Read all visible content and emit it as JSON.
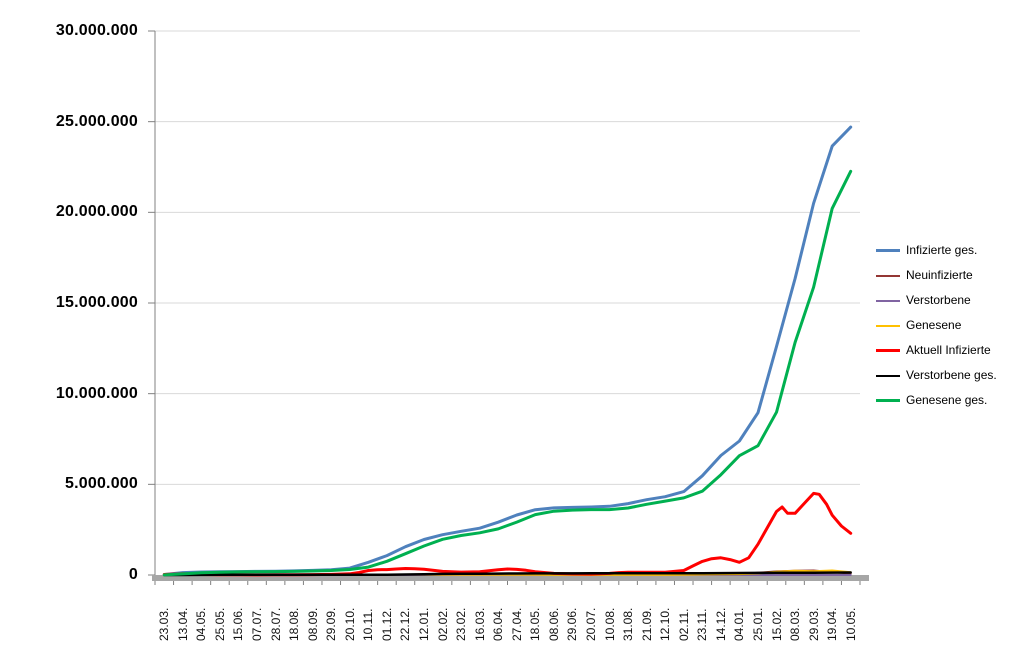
{
  "page": {
    "background": "#ffffff"
  },
  "chart_data": {
    "type": "line",
    "title": "",
    "xlabel": "",
    "ylabel": "",
    "grid": true,
    "legend_position": "right",
    "x_tick_labels": [
      "23.03.",
      "13.04.",
      "04.05.",
      "25.05.",
      "15.06.",
      "07.07.",
      "28.07.",
      "18.08.",
      "08.09.",
      "29.09.",
      "20.10.",
      "10.11.",
      "01.12.",
      "22.12.",
      "12.01.",
      "02.02.",
      "23.02.",
      "16.03.",
      "06.04.",
      "27.04.",
      "18.05.",
      "08.06.",
      "29.06.",
      "20.07.",
      "10.08.",
      "31.08.",
      "21.09.",
      "12.10.",
      "02.11.",
      "23.11.",
      "14.12.",
      "04.01.",
      "25.01.",
      "15.02.",
      "08.03.",
      "29.03.",
      "19.04.",
      "10.05."
    ],
    "y_axis": {
      "min": 0,
      "max": 30000000,
      "step": 5000000,
      "tick_labels": [
        "0",
        "5.000.000",
        "10.000.000",
        "15.000.000",
        "20.000.000",
        "25.000.000",
        "30.000.000"
      ]
    },
    "colors": {
      "gridline": "#d9d9d9",
      "axis": "#808080",
      "baseline_band": "#a6a6a6"
    },
    "series": [
      {
        "name": "Infizierte ges.",
        "color": "#4f81bd",
        "width": 3,
        "values": [
          30000,
          130000,
          163000,
          180000,
          188000,
          198000,
          208000,
          226000,
          252000,
          289000,
          380000,
          700000,
          1070000,
          1560000,
          1960000,
          2225000,
          2410000,
          2580000,
          2910000,
          3310000,
          3600000,
          3700000,
          3730000,
          3750000,
          3790000,
          3940000,
          4150000,
          4320000,
          4600000,
          5470000,
          6590000,
          7390000,
          8950000,
          12600000,
          16350000,
          20500000,
          23650000,
          24700000
        ]
      },
      {
        "name": "Neuinfizierte",
        "color": "#943634",
        "width": 2,
        "values": [
          3000,
          5000,
          2000,
          1000,
          600,
          500,
          700,
          1200,
          1500,
          2500,
          7000,
          20000,
          22000,
          27000,
          20000,
          12000,
          9000,
          10000,
          18000,
          20000,
          12000,
          5000,
          2000,
          1500,
          3500,
          8000,
          9000,
          8500,
          15000,
          50000,
          55000,
          45000,
          120000,
          200000,
          230000,
          250000,
          160000,
          80000
        ]
      },
      {
        "name": "Verstorbene",
        "color": "#8064a2",
        "width": 2,
        "values": [
          80,
          200,
          250,
          150,
          100,
          60,
          50,
          40,
          50,
          60,
          100,
          250,
          450,
          700,
          900,
          850,
          600,
          400,
          250,
          250,
          200,
          150,
          100,
          80,
          80,
          100,
          120,
          150,
          200,
          300,
          400,
          350,
          250,
          250,
          300,
          350,
          300,
          250
        ]
      },
      {
        "name": "Genesene",
        "color": "#ffc000",
        "width": 2,
        "values": [
          2000,
          8000,
          5000,
          3000,
          1500,
          1200,
          1300,
          1500,
          1800,
          2500,
          5000,
          15000,
          20000,
          25000,
          22000,
          18000,
          12000,
          10000,
          14000,
          17000,
          15000,
          8000,
          4000,
          2500,
          3500,
          6000,
          7000,
          6500,
          9000,
          25000,
          40000,
          50000,
          90000,
          180000,
          230000,
          210000,
          250000,
          150000
        ]
      },
      {
        "name": "Aktuell Infizierte",
        "color": "#ff0000",
        "width": 3,
        "x": [
          0,
          1,
          2,
          3,
          4,
          5,
          6,
          7,
          8,
          9,
          10,
          10.5,
          11,
          11.5,
          12,
          12.5,
          13,
          13.5,
          14,
          15,
          16,
          17,
          17.5,
          18,
          18.5,
          19,
          19.5,
          20,
          21,
          22,
          23,
          24,
          24.5,
          25,
          26,
          27,
          28,
          28.5,
          29,
          29.5,
          30,
          30.5,
          31,
          31.5,
          32,
          32.5,
          33,
          33.3,
          33.6,
          34,
          34.5,
          35,
          35.3,
          35.7,
          36,
          36.5,
          37
        ],
        "values": [
          25000,
          65000,
          30000,
          17000,
          9000,
          8000,
          10000,
          17000,
          21000,
          33000,
          66000,
          140000,
          250000,
          290000,
          300000,
          330000,
          360000,
          350000,
          320000,
          200000,
          160000,
          180000,
          230000,
          290000,
          330000,
          310000,
          260000,
          180000,
          90000,
          60000,
          50000,
          90000,
          130000,
          150000,
          155000,
          150000,
          250000,
          500000,
          750000,
          900000,
          950000,
          850000,
          700000,
          950000,
          1700000,
          2600000,
          3500000,
          3750000,
          3400000,
          3400000,
          3950000,
          4500000,
          4450000,
          3900000,
          3300000,
          2700000,
          2300000
        ]
      },
      {
        "name": "Verstorbene ges.",
        "color": "#000000",
        "width": 2.5,
        "values": [
          200,
          2500,
          6500,
          8400,
          8800,
          9000,
          9100,
          9200,
          9300,
          9500,
          9900,
          12000,
          17000,
          27000,
          43000,
          59000,
          69000,
          74000,
          78000,
          83000,
          86500,
          89000,
          90500,
          91500,
          92000,
          92500,
          93200,
          94500,
          96000,
          100000,
          106000,
          113000,
          117500,
          121000,
          125000,
          129000,
          133500,
          136500
        ]
      },
      {
        "name": "Genesene ges.",
        "color": "#00b050",
        "width": 3,
        "values": [
          5000,
          62000,
          126000,
          154000,
          170000,
          181000,
          189000,
          200000,
          222000,
          246000,
          304000,
          438000,
          753000,
          1173000,
          1597000,
          1966000,
          2181000,
          2326000,
          2542000,
          2917000,
          3333000,
          3521000,
          3579000,
          3608000,
          3608000,
          3697000,
          3901000,
          4075000,
          4254000,
          4620000,
          5534000,
          6577000,
          7132000,
          8979000,
          12825000,
          15871000,
          20216000,
          22263000
        ]
      }
    ]
  }
}
